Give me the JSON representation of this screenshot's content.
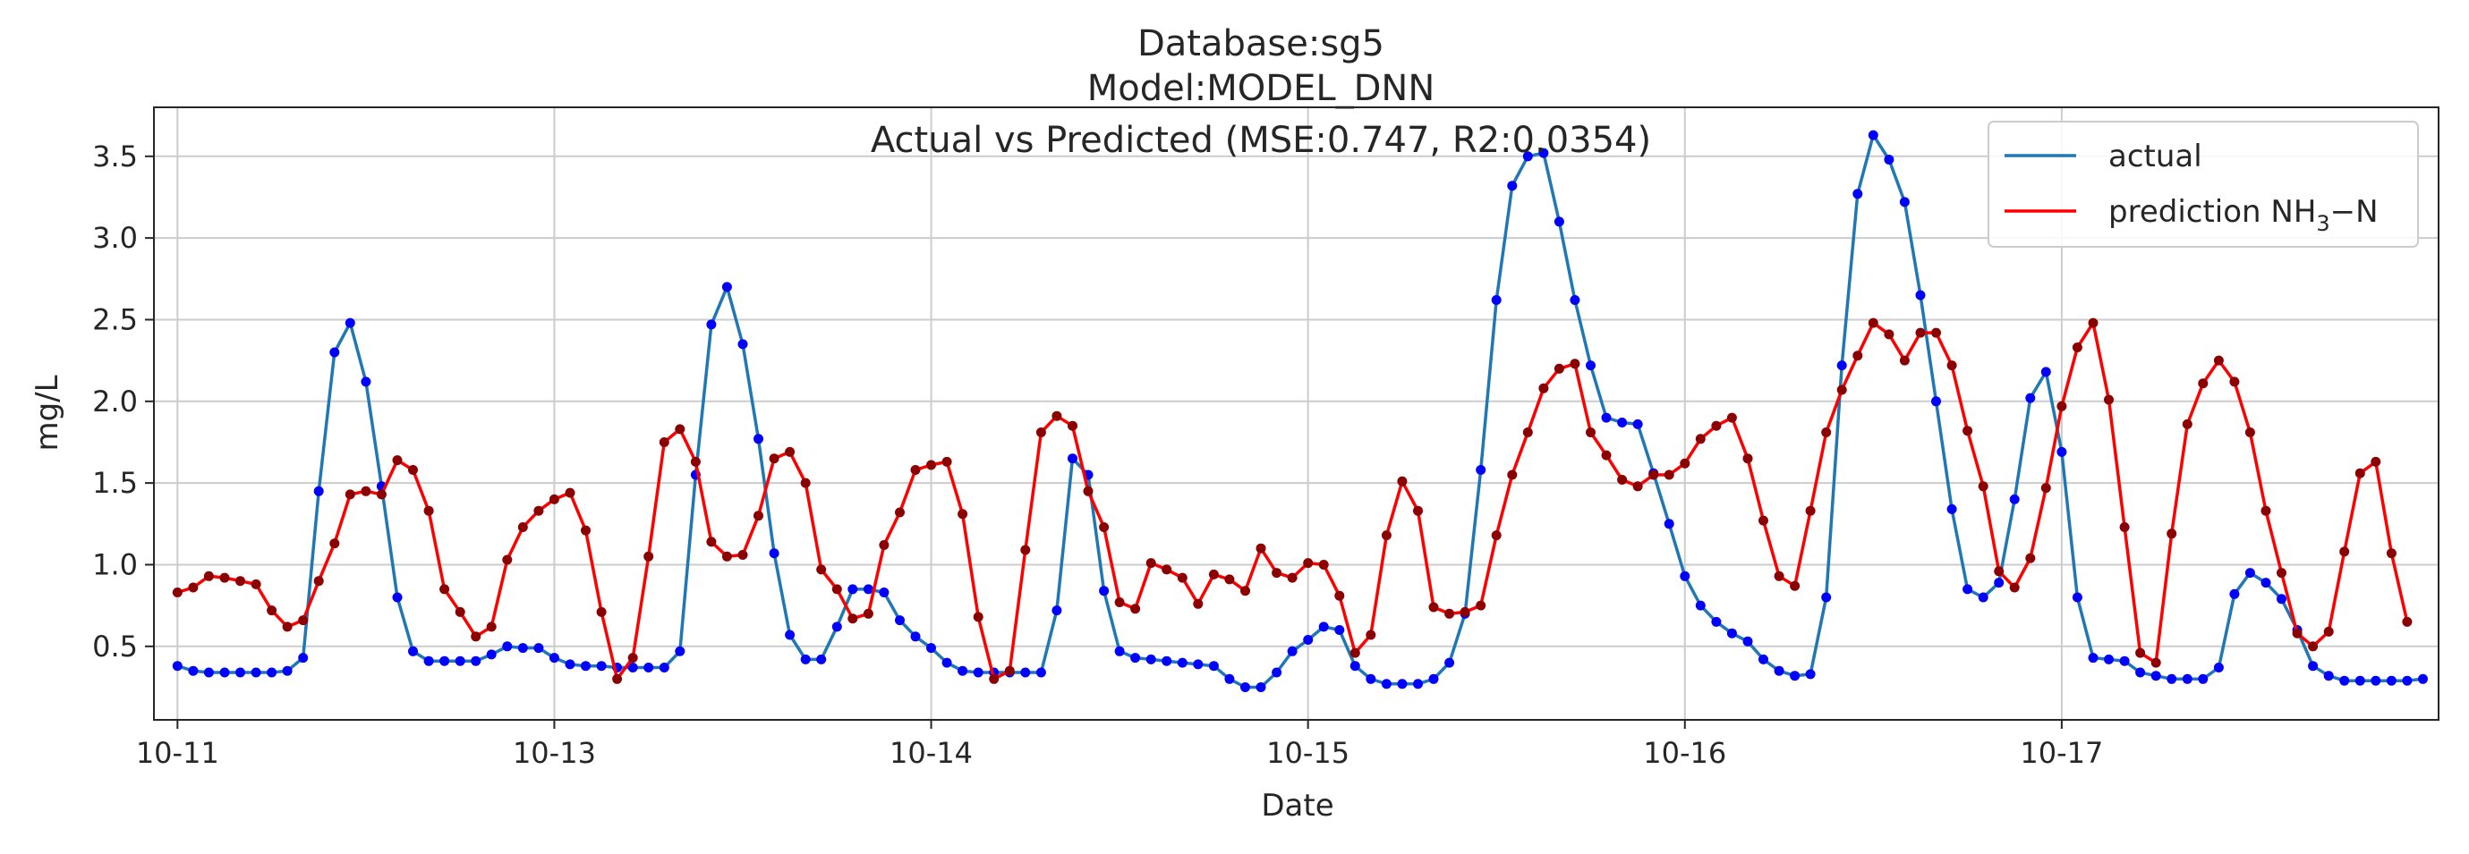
{
  "chart_data": {
    "type": "line",
    "title_lines": [
      "Database:sg5",
      "Model:MODEL_DNN",
      "Actual vs Predicted (MSE:0.747, R2:0.0354)"
    ],
    "xlabel": "Date",
    "ylabel": "mg/L",
    "x_ticks": [
      {
        "label": "10-11",
        "t": 0
      },
      {
        "label": "10-13",
        "t": 24
      },
      {
        "label": "10-14",
        "t": 48
      },
      {
        "label": "10-15",
        "t": 72
      },
      {
        "label": "10-16",
        "t": 96
      },
      {
        "label": "10-17",
        "t": 120
      }
    ],
    "y_ticks": [
      0.5,
      1.0,
      1.5,
      2.0,
      2.5,
      3.0,
      3.5
    ],
    "y_tick_labels": [
      "0.5",
      "1.0",
      "1.5",
      "2.0",
      "2.5",
      "3.0",
      "3.5"
    ],
    "xlim": [
      -1.5,
      144
    ],
    "ylim": [
      0.05,
      3.8
    ],
    "grid": true,
    "legend_position": "top-right",
    "x_step": 1,
    "series": [
      {
        "name": "actual",
        "color": "#1f77b4",
        "marker_color": "#0000ff",
        "values": [
          0.38,
          0.35,
          0.34,
          0.34,
          0.34,
          0.34,
          0.34,
          0.35,
          0.43,
          1.45,
          2.3,
          2.48,
          2.12,
          1.48,
          0.8,
          0.47,
          0.41,
          0.41,
          0.41,
          0.41,
          0.45,
          0.5,
          0.49,
          0.49,
          0.43,
          0.39,
          0.38,
          0.38,
          0.37,
          0.37,
          0.37,
          0.37,
          0.47,
          1.55,
          2.47,
          2.7,
          2.35,
          1.77,
          1.07,
          0.57,
          0.42,
          0.42,
          0.62,
          0.85,
          0.85,
          0.83,
          0.66,
          0.56,
          0.49,
          0.4,
          0.35,
          0.34,
          0.34,
          0.34,
          0.34,
          0.34,
          0.72,
          1.65,
          1.55,
          0.84,
          0.47,
          0.43,
          0.42,
          0.41,
          0.4,
          0.39,
          0.38,
          0.3,
          0.25,
          0.25,
          0.34,
          0.47,
          0.54,
          0.62,
          0.6,
          0.38,
          0.3,
          0.27,
          0.27,
          0.27,
          0.3,
          0.4,
          0.7,
          1.58,
          2.62,
          3.32,
          3.5,
          3.52,
          3.1,
          2.62,
          2.22,
          1.9,
          1.87,
          1.86,
          1.56,
          1.25,
          0.93,
          0.75,
          0.65,
          0.58,
          0.53,
          0.42,
          0.35,
          0.32,
          0.33,
          0.8,
          2.22,
          3.27,
          3.63,
          3.48,
          3.22,
          2.65,
          2.0,
          1.34,
          0.85,
          0.8,
          0.89,
          1.4,
          2.02,
          2.18,
          1.69,
          0.8,
          0.43,
          0.42,
          0.41,
          0.34,
          0.32,
          0.3,
          0.3,
          0.3,
          0.37,
          0.82,
          0.95,
          0.89,
          0.79,
          0.6,
          0.38,
          0.32,
          0.29,
          0.29,
          0.29,
          0.29,
          0.29,
          0.3
        ]
      },
      {
        "name": "prediction NH3-N",
        "legend_label": "prediction NH",
        "legend_subscript": "3",
        "legend_suffix": "−N",
        "color": "#ff0000",
        "marker_color": "#8b0000",
        "values": [
          0.83,
          0.86,
          0.93,
          0.92,
          0.9,
          0.88,
          0.72,
          0.62,
          0.66,
          0.9,
          1.13,
          1.43,
          1.45,
          1.43,
          1.64,
          1.58,
          1.33,
          0.85,
          0.71,
          0.56,
          0.62,
          1.03,
          1.23,
          1.33,
          1.4,
          1.44,
          1.21,
          0.71,
          0.3,
          0.43,
          1.05,
          1.75,
          1.83,
          1.63,
          1.14,
          1.05,
          1.06,
          1.3,
          1.65,
          1.69,
          1.5,
          0.97,
          0.85,
          0.67,
          0.7,
          1.12,
          1.32,
          1.58,
          1.61,
          1.63,
          1.31,
          0.68,
          0.3,
          0.35,
          1.09,
          1.81,
          1.91,
          1.85,
          1.45,
          1.23,
          0.77,
          0.73,
          1.01,
          0.97,
          0.92,
          0.76,
          0.94,
          0.91,
          0.84,
          1.1,
          0.95,
          0.92,
          1.01,
          1.0,
          0.81,
          0.46,
          0.57,
          1.18,
          1.51,
          1.33,
          0.74,
          0.7,
          0.71,
          0.75,
          1.18,
          1.55,
          1.81,
          2.08,
          2.2,
          2.23,
          1.81,
          1.67,
          1.52,
          1.48,
          1.55,
          1.55,
          1.62,
          1.77,
          1.85,
          1.9,
          1.65,
          1.27,
          0.93,
          0.87,
          1.33,
          1.81,
          2.07,
          2.28,
          2.48,
          2.41,
          2.25,
          2.42,
          2.42,
          2.22,
          1.82,
          1.48,
          0.96,
          0.86,
          1.04,
          1.47,
          1.97,
          2.33,
          2.48,
          2.01,
          1.23,
          0.46,
          0.4,
          1.19,
          1.86,
          2.11,
          2.25,
          2.12,
          1.81,
          1.33,
          0.95,
          0.58,
          0.5,
          0.59,
          1.08,
          1.56,
          1.63,
          1.07,
          0.65
        ]
      }
    ]
  }
}
